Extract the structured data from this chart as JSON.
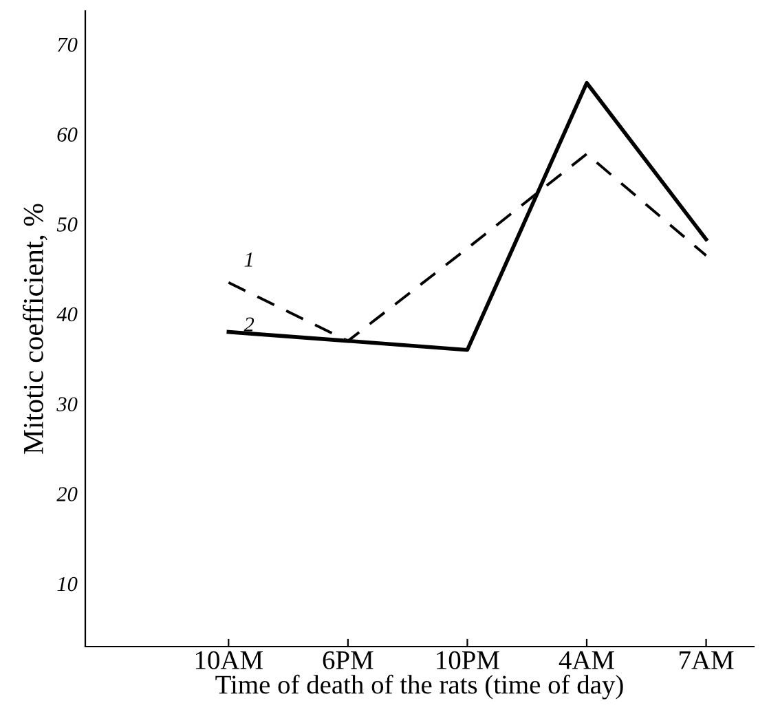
{
  "chart_data": {
    "type": "line",
    "xlabel": "Time of death of the rats (time of day)",
    "ylabel": "Mitotic coefficient, %",
    "categories": [
      "10AM",
      "6PM",
      "10PM",
      "4AM",
      "7AM"
    ],
    "ylim": [
      3,
      73.7
    ],
    "yticks": [
      10,
      20,
      30,
      40,
      50,
      60,
      70
    ],
    "grid": false,
    "legend": false,
    "marker": "none",
    "series": [
      {
        "name": "1",
        "color": "#000000",
        "line_style": "dashed",
        "values": [
          43.5,
          37,
          47.3,
          57.8,
          46.5
        ]
      },
      {
        "name": "2",
        "color": "#000000",
        "line_style": "solid",
        "values": [
          38,
          37,
          36,
          65.7,
          48.3
        ]
      }
    ]
  }
}
